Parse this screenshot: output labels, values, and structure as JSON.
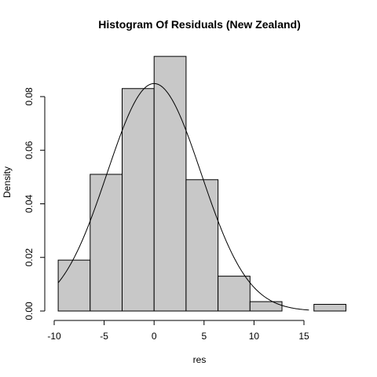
{
  "chart_data": {
    "type": "bar",
    "title": "Histogram Of Residuals (New Zealand)",
    "xlabel": "res",
    "ylabel": "Density",
    "xlim": [
      -10,
      19
    ],
    "ylim": [
      0,
      0.095
    ],
    "bins": [
      {
        "x0": -9.6,
        "x1": -6.4,
        "density": 0.019
      },
      {
        "x0": -6.4,
        "x1": -3.2,
        "density": 0.051
      },
      {
        "x0": -3.2,
        "x1": 0.0,
        "density": 0.083
      },
      {
        "x0": 0.0,
        "x1": 3.2,
        "density": 0.095
      },
      {
        "x0": 3.2,
        "x1": 6.4,
        "density": 0.049
      },
      {
        "x0": 6.4,
        "x1": 9.6,
        "density": 0.013
      },
      {
        "x0": 9.6,
        "x1": 12.8,
        "density": 0.0035
      },
      {
        "x0": 12.8,
        "x1": 16.0,
        "density": 0.0
      },
      {
        "x0": 16.0,
        "x1": 19.2,
        "density": 0.0025
      }
    ],
    "curve": {
      "type": "normal",
      "mean": 0,
      "sd": 4.7,
      "x_range": [
        -9.6,
        15.5
      ]
    },
    "x_ticks": [
      -10,
      -5,
      0,
      5,
      10,
      15
    ],
    "x_tick_labels": [
      "-10",
      "-5",
      "0",
      "5",
      "10",
      "15"
    ],
    "y_ticks": [
      0,
      0.02,
      0.04,
      0.06,
      0.08
    ],
    "y_tick_labels": [
      "0.00",
      "0.02",
      "0.04",
      "0.06",
      "0.08"
    ]
  }
}
